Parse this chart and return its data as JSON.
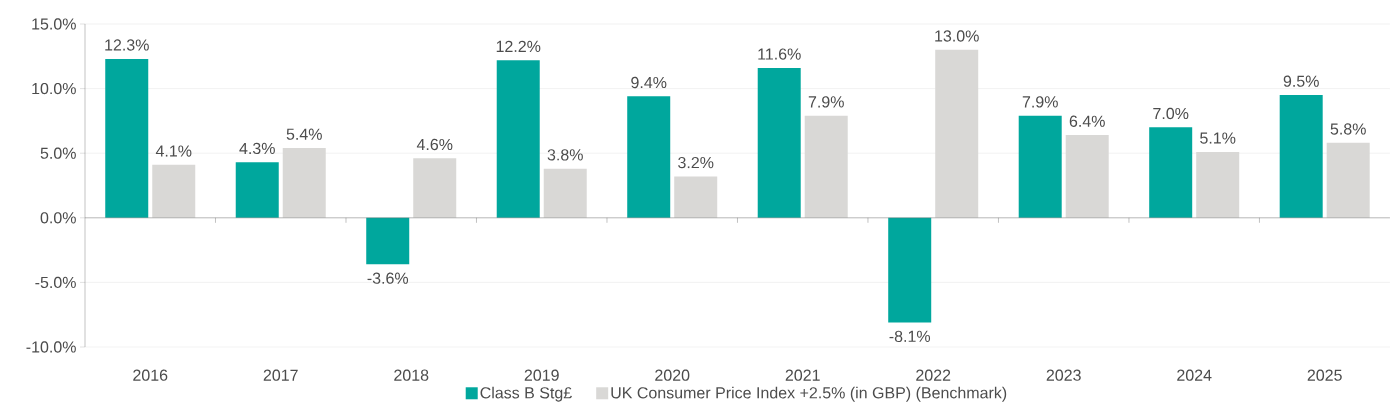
{
  "chart_data": {
    "type": "bar",
    "categories": [
      "2016",
      "2017",
      "2018",
      "2019",
      "2020",
      "2021",
      "2022",
      "2023",
      "2024",
      "2025"
    ],
    "series": [
      {
        "name": "Class B Stg£",
        "color": "#00a79d",
        "values": [
          12.3,
          4.3,
          -3.6,
          12.2,
          9.4,
          11.6,
          -8.1,
          7.9,
          7.0,
          9.5
        ],
        "value_labels": [
          "12.3%",
          "4.3%",
          "-3.6%",
          "12.2%",
          "9.4%",
          "11.6%",
          "-8.1%",
          "7.9%",
          "7.0%",
          "9.5%"
        ]
      },
      {
        "name": "UK Consumer Price Index +2.5% (in GBP) (Benchmark)",
        "color": "#d9d8d6",
        "values": [
          4.1,
          5.4,
          4.6,
          3.8,
          3.2,
          7.9,
          13.0,
          6.4,
          5.1,
          5.8
        ],
        "value_labels": [
          "4.1%",
          "5.4%",
          "4.6%",
          "3.8%",
          "3.2%",
          "7.9%",
          "13.0%",
          "6.4%",
          "5.1%",
          "5.8%"
        ]
      }
    ],
    "ylim": [
      -10,
      15
    ],
    "yticks": [
      {
        "value": -10,
        "label": "-10.0%"
      },
      {
        "value": -5,
        "label": "-5.0%"
      },
      {
        "value": 0,
        "label": "0.0%"
      },
      {
        "value": 5,
        "label": "5.0%"
      },
      {
        "value": 10,
        "label": "10.0%"
      },
      {
        "value": 15,
        "label": "15.0%"
      }
    ],
    "grid": "y",
    "legend": "bottom"
  }
}
